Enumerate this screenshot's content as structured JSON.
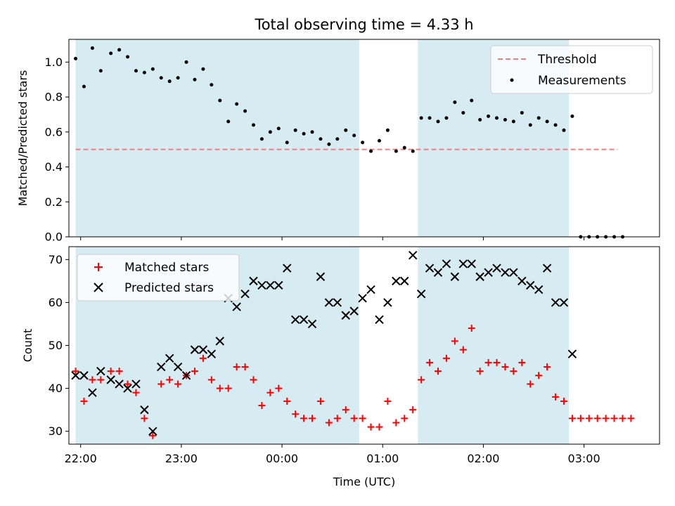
{
  "chart_data": [
    {
      "type": "scatter",
      "title": "Total observing time = 4.33 h",
      "ylabel": "Matched/Predicted stars",
      "xlabel": "",
      "xlim": [
        "21:53",
        "03:45"
      ],
      "ylim": [
        0,
        1.13
      ],
      "yticks": [
        0.0,
        0.2,
        0.4,
        0.6,
        0.8,
        1.0
      ],
      "ytick_labels": [
        "0.0",
        "0.2",
        "0.4",
        "0.6",
        "0.8",
        "1.0"
      ],
      "shaded_intervals": [
        [
          "21:57",
          "00:46"
        ],
        [
          "01:21",
          "02:51"
        ]
      ],
      "legend_position": "upper right",
      "threshold": {
        "name": "Threshold",
        "value": 0.5,
        "x_range": [
          "21:57",
          "03:20"
        ],
        "color": "#f08080"
      },
      "series": [
        {
          "name": "Measurements",
          "color": "#000000",
          "marker": "dot",
          "points": [
            [
              "21:57",
              1.02
            ],
            [
              "22:02",
              0.86
            ],
            [
              "22:07",
              1.08
            ],
            [
              "22:12",
              0.95
            ],
            [
              "22:18",
              1.05
            ],
            [
              "22:23",
              1.07
            ],
            [
              "22:28",
              1.03
            ],
            [
              "22:33",
              0.95
            ],
            [
              "22:38",
              0.94
            ],
            [
              "22:43",
              0.96
            ],
            [
              "22:48",
              0.91
            ],
            [
              "22:53",
              0.89
            ],
            [
              "22:58",
              0.91
            ],
            [
              "23:03",
              1.0
            ],
            [
              "23:08",
              0.9
            ],
            [
              "23:13",
              0.96
            ],
            [
              "23:18",
              0.87
            ],
            [
              "23:23",
              0.78
            ],
            [
              "23:28",
              0.66
            ],
            [
              "23:33",
              0.76
            ],
            [
              "23:38",
              0.72
            ],
            [
              "23:43",
              0.64
            ],
            [
              "23:48",
              0.56
            ],
            [
              "23:53",
              0.6
            ],
            [
              "23:58",
              0.62
            ],
            [
              "00:03",
              0.54
            ],
            [
              "00:08",
              0.61
            ],
            [
              "00:13",
              0.59
            ],
            [
              "00:18",
              0.6
            ],
            [
              "00:23",
              0.56
            ],
            [
              "00:28",
              0.53
            ],
            [
              "00:33",
              0.56
            ],
            [
              "00:38",
              0.61
            ],
            [
              "00:43",
              0.58
            ],
            [
              "00:48",
              0.54
            ],
            [
              "00:53",
              0.49
            ],
            [
              "00:58",
              0.55
            ],
            [
              "01:03",
              0.61
            ],
            [
              "01:08",
              0.49
            ],
            [
              "01:13",
              0.51
            ],
            [
              "01:18",
              0.49
            ],
            [
              "01:23",
              0.68
            ],
            [
              "01:28",
              0.68
            ],
            [
              "01:33",
              0.66
            ],
            [
              "01:38",
              0.68
            ],
            [
              "01:43",
              0.77
            ],
            [
              "01:48",
              0.71
            ],
            [
              "01:53",
              0.78
            ],
            [
              "01:58",
              0.67
            ],
            [
              "02:03",
              0.69
            ],
            [
              "02:08",
              0.68
            ],
            [
              "02:13",
              0.67
            ],
            [
              "02:18",
              0.66
            ],
            [
              "02:23",
              0.71
            ],
            [
              "02:28",
              0.64
            ],
            [
              "02:33",
              0.68
            ],
            [
              "02:38",
              0.66
            ],
            [
              "02:43",
              0.64
            ],
            [
              "02:48",
              0.61
            ],
            [
              "02:53",
              0.69
            ],
            [
              "02:58",
              0.0
            ],
            [
              "03:03",
              0.0
            ],
            [
              "03:08",
              0.0
            ],
            [
              "03:13",
              0.0
            ],
            [
              "03:18",
              0.0
            ],
            [
              "03:23",
              0.0
            ]
          ]
        }
      ]
    },
    {
      "type": "scatter",
      "title": "",
      "ylabel": "Count",
      "xlabel": "Time (UTC)",
      "xlim": [
        "21:53",
        "03:45"
      ],
      "ylim": [
        27,
        73
      ],
      "yticks": [
        30,
        40,
        50,
        60,
        70
      ],
      "xticks": [
        "22:00",
        "23:00",
        "00:00",
        "01:00",
        "02:00",
        "03:00"
      ],
      "shaded_intervals": [
        [
          "21:57",
          "00:46"
        ],
        [
          "01:21",
          "02:51"
        ]
      ],
      "legend_position": "upper left",
      "series": [
        {
          "name": "Matched stars",
          "color": "#ff0000",
          "marker": "plus",
          "points": [
            [
              "21:57",
              44
            ],
            [
              "22:02",
              37
            ],
            [
              "22:07",
              42
            ],
            [
              "22:12",
              42
            ],
            [
              "22:18",
              44
            ],
            [
              "22:23",
              44
            ],
            [
              "22:28",
              41
            ],
            [
              "22:33",
              39
            ],
            [
              "22:38",
              33
            ],
            [
              "22:43",
              29
            ],
            [
              "22:48",
              41
            ],
            [
              "22:53",
              42
            ],
            [
              "22:58",
              41
            ],
            [
              "23:03",
              43
            ],
            [
              "23:08",
              44
            ],
            [
              "23:13",
              47
            ],
            [
              "23:18",
              42
            ],
            [
              "23:23",
              40
            ],
            [
              "23:28",
              40
            ],
            [
              "23:33",
              45
            ],
            [
              "23:38",
              45
            ],
            [
              "23:43",
              42
            ],
            [
              "23:48",
              36
            ],
            [
              "23:53",
              39
            ],
            [
              "23:58",
              40
            ],
            [
              "00:03",
              37
            ],
            [
              "00:08",
              34
            ],
            [
              "00:13",
              33
            ],
            [
              "00:18",
              33
            ],
            [
              "00:23",
              37
            ],
            [
              "00:28",
              32
            ],
            [
              "00:33",
              33
            ],
            [
              "00:38",
              35
            ],
            [
              "00:43",
              33
            ],
            [
              "00:48",
              33
            ],
            [
              "00:53",
              31
            ],
            [
              "00:58",
              31
            ],
            [
              "01:03",
              37
            ],
            [
              "01:08",
              32
            ],
            [
              "01:13",
              33
            ],
            [
              "01:18",
              35
            ],
            [
              "01:23",
              42
            ],
            [
              "01:28",
              46
            ],
            [
              "01:33",
              44
            ],
            [
              "01:38",
              47
            ],
            [
              "01:43",
              51
            ],
            [
              "01:48",
              49
            ],
            [
              "01:53",
              54
            ],
            [
              "01:58",
              44
            ],
            [
              "02:03",
              46
            ],
            [
              "02:08",
              46
            ],
            [
              "02:13",
              45
            ],
            [
              "02:18",
              44
            ],
            [
              "02:23",
              46
            ],
            [
              "02:28",
              41
            ],
            [
              "02:33",
              43
            ],
            [
              "02:38",
              45
            ],
            [
              "02:43",
              38
            ],
            [
              "02:48",
              37
            ],
            [
              "02:53",
              33
            ],
            [
              "02:58",
              33
            ],
            [
              "03:03",
              33
            ],
            [
              "03:08",
              33
            ],
            [
              "03:13",
              33
            ],
            [
              "03:18",
              33
            ],
            [
              "03:23",
              33
            ],
            [
              "03:28",
              33
            ]
          ]
        },
        {
          "name": "Predicted stars",
          "color": "#000000",
          "marker": "x",
          "points": [
            [
              "21:57",
              43
            ],
            [
              "22:02",
              43
            ],
            [
              "22:07",
              39
            ],
            [
              "22:12",
              44
            ],
            [
              "22:18",
              42
            ],
            [
              "22:23",
              41
            ],
            [
              "22:28",
              40
            ],
            [
              "22:33",
              41
            ],
            [
              "22:38",
              35
            ],
            [
              "22:43",
              30
            ],
            [
              "22:48",
              45
            ],
            [
              "22:53",
              47
            ],
            [
              "22:58",
              45
            ],
            [
              "23:03",
              43
            ],
            [
              "23:08",
              49
            ],
            [
              "23:13",
              49
            ],
            [
              "23:18",
              48
            ],
            [
              "23:23",
              51
            ],
            [
              "23:28",
              61
            ],
            [
              "23:33",
              59
            ],
            [
              "23:38",
              62
            ],
            [
              "23:43",
              65
            ],
            [
              "23:48",
              64
            ],
            [
              "23:53",
              64
            ],
            [
              "23:58",
              64
            ],
            [
              "00:03",
              68
            ],
            [
              "00:08",
              56
            ],
            [
              "00:13",
              56
            ],
            [
              "00:18",
              55
            ],
            [
              "00:23",
              66
            ],
            [
              "00:28",
              60
            ],
            [
              "00:33",
              60
            ],
            [
              "00:38",
              57
            ],
            [
              "00:43",
              58
            ],
            [
              "00:48",
              61
            ],
            [
              "00:53",
              63
            ],
            [
              "00:58",
              56
            ],
            [
              "01:03",
              60
            ],
            [
              "01:08",
              65
            ],
            [
              "01:13",
              65
            ],
            [
              "01:18",
              71
            ],
            [
              "01:23",
              62
            ],
            [
              "01:28",
              68
            ],
            [
              "01:33",
              67
            ],
            [
              "01:38",
              69
            ],
            [
              "01:43",
              66
            ],
            [
              "01:48",
              69
            ],
            [
              "01:53",
              69
            ],
            [
              "01:58",
              66
            ],
            [
              "02:03",
              67
            ],
            [
              "02:08",
              68
            ],
            [
              "02:13",
              67
            ],
            [
              "02:18",
              67
            ],
            [
              "02:23",
              65
            ],
            [
              "02:28",
              64
            ],
            [
              "02:33",
              63
            ],
            [
              "02:38",
              68
            ],
            [
              "02:43",
              60
            ],
            [
              "02:48",
              60
            ],
            [
              "02:53",
              48
            ]
          ]
        }
      ]
    }
  ]
}
